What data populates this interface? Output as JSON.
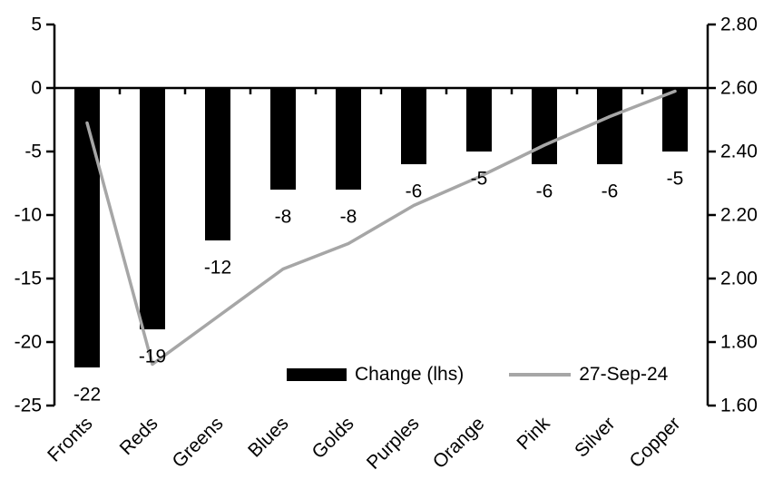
{
  "chart_data": {
    "type": "bar",
    "subtype": "combo-bar-line-dual-axis",
    "title": "",
    "grid": false,
    "categories": [
      "Fronts",
      "Reds",
      "Greens",
      "Blues",
      "Golds",
      "Purples",
      "Orange",
      "Pink",
      "Silver",
      "Copper"
    ],
    "series": [
      {
        "name": "Change (lhs)",
        "kind": "bar",
        "axis": "left",
        "color": "#000000",
        "values": [
          -22,
          -19,
          -12,
          -8,
          -8,
          -6,
          -5,
          -6,
          -6,
          -5
        ],
        "data_labels": [
          "-22",
          "-19",
          "-12",
          "-8",
          "-8",
          "-6",
          "-5",
          "-6",
          "-6",
          "-5"
        ]
      },
      {
        "name": "27-Sep-24",
        "kind": "line",
        "axis": "right",
        "color": "#a6a6a6",
        "values": [
          2.49,
          1.73,
          1.88,
          2.03,
          2.11,
          2.23,
          2.32,
          2.42,
          2.51,
          2.59
        ]
      }
    ],
    "axes": {
      "left": {
        "min": -25,
        "max": 5,
        "step": 5,
        "ticks": [
          "5",
          "0",
          "-5",
          "-10",
          "-15",
          "-20",
          "-25"
        ]
      },
      "right": {
        "min": 1.6,
        "max": 2.8,
        "step": 0.2,
        "ticks": [
          "2.80",
          "2.60",
          "2.40",
          "2.20",
          "2.00",
          "1.80",
          "1.60"
        ]
      }
    },
    "legend": {
      "position": "inside-bottom-center",
      "entries": [
        "Change (lhs)",
        "27-Sep-24"
      ]
    }
  },
  "legend": {
    "bar_label": "Change (lhs)",
    "line_label": "27-Sep-24"
  },
  "colors": {
    "bar": "#000000",
    "line": "#a6a6a6",
    "axis": "#000000",
    "text": "#000000",
    "background": "#ffffff"
  }
}
